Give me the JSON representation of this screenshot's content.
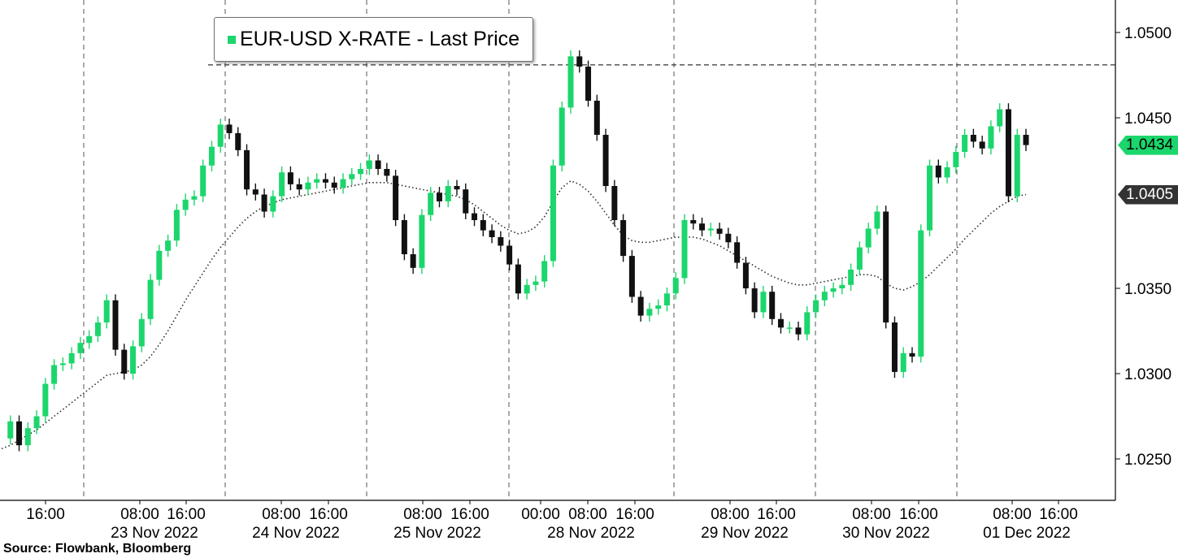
{
  "chart_data": {
    "type": "line",
    "title": "",
    "xlabel": "",
    "ylabel": "",
    "ylim": [
      1.0225,
      1.051
    ],
    "y_ticks": [
      "1.0500",
      "1.0450",
      "1.0350",
      "1.0300",
      "1.0250"
    ],
    "x_time_labels": [
      "16:00",
      "08:00",
      "16:00",
      "08:00",
      "16:00",
      "08:00",
      "16:00",
      "00:00",
      "08:00",
      "16:00",
      "08:00",
      "16:00",
      "08:00",
      "16:00",
      "08:00",
      "16:00"
    ],
    "x_date_labels": [
      "23 Nov 2022",
      "24 Nov 2022",
      "25 Nov 2022",
      "28 Nov 2022",
      "29 Nov 2022",
      "30 Nov 2022",
      "01 Dec 2022"
    ],
    "legend": {
      "position": "top-left"
    },
    "reference_line": 1.0481,
    "series": [
      {
        "name": "EUR-USD X-RATE - Last Price",
        "color": "#1bd66c",
        "style": "candlestick",
        "last_value_label": "1.0434",
        "values": [
          1.0262,
          1.0272,
          1.0258,
          1.0268,
          1.0275,
          1.0294,
          1.0305,
          1.0306,
          1.0312,
          1.0318,
          1.0322,
          1.033,
          1.0343,
          1.0314,
          1.03,
          1.0316,
          1.0332,
          1.0355,
          1.0372,
          1.0378,
          1.0396,
          1.0402,
          1.0404,
          1.0422,
          1.0433,
          1.0446,
          1.0441,
          1.0431,
          1.0408,
          1.0405,
          1.0395,
          1.0404,
          1.0418,
          1.0411,
          1.0408,
          1.0412,
          1.0414,
          1.0412,
          1.0409,
          1.0414,
          1.0417,
          1.042,
          1.0425,
          1.042,
          1.0416,
          1.039,
          1.037,
          1.0362,
          1.0393,
          1.0406,
          1.0401,
          1.041,
          1.0408,
          1.0394,
          1.039,
          1.0384,
          1.038,
          1.0375,
          1.0364,
          1.0347,
          1.0352,
          1.0354,
          1.0366,
          1.0422,
          1.0456,
          1.0486,
          1.048,
          1.046,
          1.044,
          1.041,
          1.039,
          1.0369,
          1.0345,
          1.0334,
          1.0338,
          1.034,
          1.0347,
          1.0356,
          1.039,
          1.0388,
          1.0384,
          1.0385,
          1.0382,
          1.0377,
          1.0365,
          1.035,
          1.0336,
          1.0348,
          1.0332,
          1.0327,
          1.0327,
          1.0323,
          1.0336,
          1.0343,
          1.0348,
          1.035,
          1.0352,
          1.0361,
          1.0374,
          1.0385,
          1.0395,
          1.033,
          1.0301,
          1.0312,
          1.031,
          1.0384,
          1.0422,
          1.0415,
          1.0421,
          1.043,
          1.044,
          1.0436,
          1.0432,
          1.0445,
          1.0455,
          1.0404,
          1.044,
          1.0434
        ]
      },
      {
        "name": "",
        "color": "#2b2b2b",
        "style": "dotted",
        "last_value_label": "1.0405",
        "values": [
          1.0256,
          1.0258,
          1.0261,
          1.0264,
          1.0267,
          1.0271,
          1.0275,
          1.0279,
          1.0283,
          1.0287,
          1.0291,
          1.0295,
          1.0299,
          1.03,
          1.0301,
          1.0302,
          1.0305,
          1.031,
          1.0317,
          1.0325,
          1.0334,
          1.0343,
          1.0351,
          1.0359,
          1.0367,
          1.0374,
          1.038,
          1.0386,
          1.0391,
          1.0395,
          1.0398,
          1.04,
          1.0402,
          1.0403,
          1.0404,
          1.0405,
          1.0406,
          1.0407,
          1.0408,
          1.0409,
          1.041,
          1.0411,
          1.0412,
          1.0412,
          1.0412,
          1.0411,
          1.041,
          1.0409,
          1.0408,
          1.0407,
          1.0406,
          1.0405,
          1.0404,
          1.0402,
          1.0399,
          1.0395,
          1.0391,
          1.0387,
          1.0384,
          1.0382,
          1.0383,
          1.0386,
          1.0392,
          1.0401,
          1.0409,
          1.0413,
          1.0411,
          1.0407,
          1.0401,
          1.0394,
          1.0387,
          1.0381,
          1.0378,
          1.0377,
          1.0377,
          1.0378,
          1.0379,
          1.038,
          1.038,
          1.038,
          1.0379,
          1.0377,
          1.0375,
          1.0372,
          1.0369,
          1.0366,
          1.0363,
          1.036,
          1.0357,
          1.0355,
          1.0353,
          1.0352,
          1.0352,
          1.0353,
          1.0354,
          1.0355,
          1.0356,
          1.0357,
          1.0358,
          1.0358,
          1.0357,
          1.0353,
          1.035,
          1.0349,
          1.0351,
          1.0354,
          1.0358,
          1.0363,
          1.0368,
          1.0373,
          1.0379,
          1.0384,
          1.0389,
          1.0394,
          1.0398,
          1.0401,
          1.0404,
          1.0405
        ]
      }
    ]
  },
  "legend_label": "EUR-USD X-RATE - Last Price",
  "source": "Source: Flowbank, Bloomberg"
}
